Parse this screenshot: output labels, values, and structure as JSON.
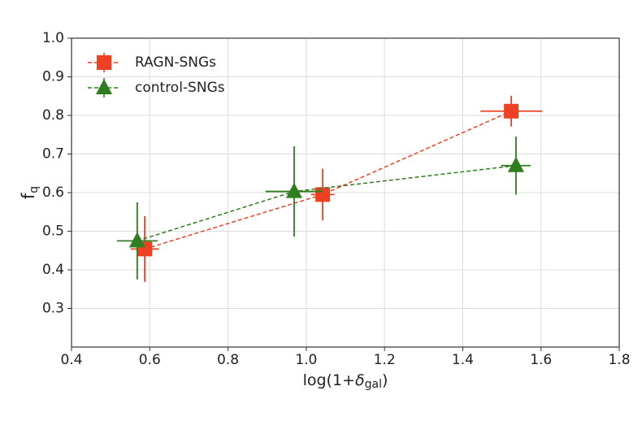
{
  "chart_data": {
    "type": "errorbar",
    "xlabel": [
      "log(1+",
      "δ",
      "gal",
      ")"
    ],
    "ylabel": [
      "f",
      "q"
    ],
    "xlim": [
      0.4,
      1.8
    ],
    "xticks": [
      0.4,
      0.6,
      0.8,
      {
        "value": 1,
        "label": "1.0"
      },
      1.2,
      1.4,
      1.6,
      1.8
    ],
    "ylim": [
      0.2,
      1.0
    ],
    "yticks": [
      0.3,
      0.4,
      0.5,
      0.6,
      0.7,
      0.8,
      0.9,
      {
        "value": 1,
        "label": "1.0"
      }
    ],
    "grid": true,
    "legend": "upper left",
    "series": [
      {
        "name": "RAGN-SNGs",
        "color": "#ee4023",
        "marker": "square",
        "x": [
          0.587,
          1.042,
          1.524
        ],
        "values": [
          0.454,
          0.595,
          0.811
        ],
        "xerr": [
          0.036,
          0.03,
          0.079
        ],
        "yerr": [
          0.085,
          0.067,
          0.04
        ]
      },
      {
        "name": "control-SNGs",
        "color": "#2e7d1f",
        "marker": "triangle",
        "x": [
          0.568,
          0.969,
          1.536
        ],
        "values": [
          0.475,
          0.603,
          0.67
        ],
        "xerr": [
          0.052,
          0.073,
          0.038
        ],
        "yerr": [
          0.1,
          0.117,
          0.075
        ]
      }
    ]
  }
}
